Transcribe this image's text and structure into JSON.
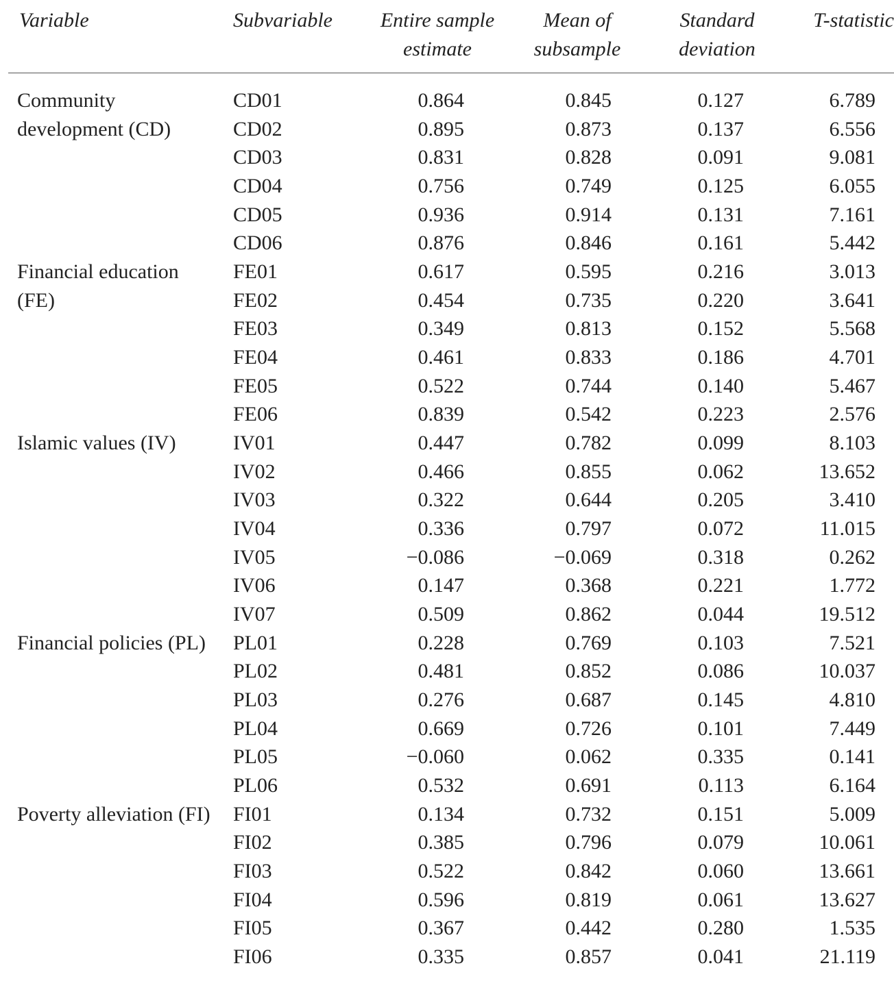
{
  "header": {
    "columns": [
      "Variable",
      "Subvariable",
      "Entire sample estimate",
      "Mean of subsample",
      "Standard deviation",
      "T-statistic"
    ]
  },
  "groups": [
    {
      "variable": "Community development (CD)",
      "rows": [
        [
          "CD01",
          "0.864",
          "0.845",
          "0.127",
          "6.789"
        ],
        [
          "CD02",
          "0.895",
          "0.873",
          "0.137",
          "6.556"
        ],
        [
          "CD03",
          "0.831",
          "0.828",
          "0.091",
          "9.081"
        ],
        [
          "CD04",
          "0.756",
          "0.749",
          "0.125",
          "6.055"
        ],
        [
          "CD05",
          "0.936",
          "0.914",
          "0.131",
          "7.161"
        ],
        [
          "CD06",
          "0.876",
          "0.846",
          "0.161",
          "5.442"
        ]
      ]
    },
    {
      "variable": "Financial education (FE)",
      "rows": [
        [
          "FE01",
          "0.617",
          "0.595",
          "0.216",
          "3.013"
        ],
        [
          "FE02",
          "0.454",
          "0.735",
          "0.220",
          "3.641"
        ],
        [
          "FE03",
          "0.349",
          "0.813",
          "0.152",
          "5.568"
        ],
        [
          "FE04",
          "0.461",
          "0.833",
          "0.186",
          "4.701"
        ],
        [
          "FE05",
          "0.522",
          "0.744",
          "0.140",
          "5.467"
        ],
        [
          "FE06",
          "0.839",
          "0.542",
          "0.223",
          "2.576"
        ]
      ]
    },
    {
      "variable": "Islamic values (IV)",
      "rows": [
        [
          "IV01",
          "0.447",
          "0.782",
          "0.099",
          "8.103"
        ],
        [
          "IV02",
          "0.466",
          "0.855",
          "0.062",
          "13.652"
        ],
        [
          "IV03",
          "0.322",
          "0.644",
          "0.205",
          "3.410"
        ],
        [
          "IV04",
          "0.336",
          "0.797",
          "0.072",
          "11.015"
        ],
        [
          "IV05",
          "−0.086",
          "−0.069",
          "0.318",
          "0.262"
        ],
        [
          "IV06",
          "0.147",
          "0.368",
          "0.221",
          "1.772"
        ],
        [
          "IV07",
          "0.509",
          "0.862",
          "0.044",
          "19.512"
        ]
      ]
    },
    {
      "variable": "Financial policies (PL)",
      "rows": [
        [
          "PL01",
          "0.228",
          "0.769",
          "0.103",
          "7.521"
        ],
        [
          "PL02",
          "0.481",
          "0.852",
          "0.086",
          "10.037"
        ],
        [
          "PL03",
          "0.276",
          "0.687",
          "0.145",
          "4.810"
        ],
        [
          "PL04",
          "0.669",
          "0.726",
          "0.101",
          "7.449"
        ],
        [
          "PL05",
          "−0.060",
          "0.062",
          "0.335",
          "0.141"
        ],
        [
          "PL06",
          "0.532",
          "0.691",
          "0.113",
          "6.164"
        ]
      ]
    },
    {
      "variable": "Poverty alleviation (FI)",
      "rows": [
        [
          "FI01",
          "0.134",
          "0.732",
          "0.151",
          "5.009"
        ],
        [
          "FI02",
          "0.385",
          "0.796",
          "0.079",
          "10.061"
        ],
        [
          "FI03",
          "0.522",
          "0.842",
          "0.060",
          "13.661"
        ],
        [
          "FI04",
          "0.596",
          "0.819",
          "0.061",
          "13.627"
        ],
        [
          "FI05",
          "0.367",
          "0.442",
          "0.280",
          "1.535"
        ],
        [
          "FI06",
          "0.335",
          "0.857",
          "0.041",
          "21.119"
        ]
      ]
    }
  ]
}
